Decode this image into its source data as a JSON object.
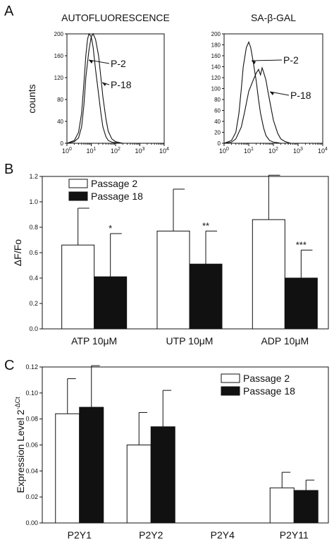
{
  "panels": {
    "A": {
      "letter": "A",
      "ylabel": "counts"
    },
    "B": {
      "letter": "B"
    },
    "C": {
      "letter": "C"
    }
  },
  "chart_data": [
    {
      "type": "line",
      "panel": "A",
      "title": "AUTOFLUORESCENCE",
      "xlabel": "",
      "ylabel": "counts",
      "x_scale": "log",
      "xlim": [
        1,
        10000
      ],
      "x_ticks": [
        "10^0",
        "10^1",
        "10^2",
        "10^3",
        "10^4"
      ],
      "ylim": [
        0,
        200
      ],
      "y_ticks": [
        "0",
        "40",
        "80",
        "120",
        "160",
        "200"
      ],
      "series": [
        {
          "name": "P-2",
          "x": [
            1,
            2,
            3,
            4,
            5,
            6,
            7,
            8,
            10,
            12,
            15,
            20,
            25,
            30,
            40,
            50,
            70,
            100,
            150
          ],
          "y": [
            0,
            5,
            20,
            55,
            110,
            160,
            190,
            200,
            195,
            175,
            135,
            90,
            55,
            30,
            12,
            5,
            2,
            1,
            0
          ]
        },
        {
          "name": "P-18",
          "x": [
            1,
            2,
            3,
            4,
            5,
            6,
            8,
            10,
            12,
            15,
            20,
            25,
            30,
            40,
            50,
            70,
            100,
            150,
            200
          ],
          "y": [
            0,
            3,
            10,
            30,
            70,
            120,
            170,
            195,
            200,
            190,
            160,
            120,
            85,
            45,
            22,
            8,
            3,
            1,
            0
          ]
        }
      ],
      "annotations": [
        "P-2",
        "P-18"
      ]
    },
    {
      "type": "line",
      "panel": "A",
      "title": "SA-β-GAL",
      "xlabel": "",
      "ylabel": "",
      "x_scale": "log",
      "xlim": [
        1,
        10000
      ],
      "x_ticks": [
        "10^0",
        "10^1",
        "10^2",
        "10^3",
        "10^4"
      ],
      "ylim": [
        0,
        200
      ],
      "y_ticks": [
        "0",
        "20",
        "40",
        "60",
        "80",
        "100",
        "120",
        "140",
        "160",
        "180",
        "200"
      ],
      "series": [
        {
          "name": "P-2",
          "x": [
            1,
            2,
            3,
            4,
            5,
            6,
            8,
            10,
            12,
            15,
            20,
            25,
            30,
            40,
            50,
            70,
            100,
            150,
            200
          ],
          "y": [
            0,
            5,
            20,
            55,
            100,
            140,
            175,
            185,
            175,
            150,
            115,
            80,
            55,
            28,
            14,
            5,
            2,
            1,
            0
          ]
        },
        {
          "name": "P-18",
          "x": [
            1,
            2,
            3,
            5,
            7,
            10,
            15,
            20,
            25,
            30,
            35,
            40,
            50,
            60,
            80,
            100,
            150,
            200,
            300,
            500
          ],
          "y": [
            0,
            2,
            8,
            30,
            60,
            95,
            115,
            128,
            135,
            125,
            138,
            130,
            115,
            95,
            65,
            42,
            18,
            8,
            3,
            0
          ]
        }
      ],
      "annotations": [
        "P-2",
        "P-18"
      ]
    },
    {
      "type": "bar",
      "panel": "B",
      "xlabel": "",
      "ylabel": "ΔF/Fo",
      "categories": [
        "ATP 10μM",
        "UTP 10μM",
        "ADP 10μM"
      ],
      "ylim": [
        0,
        1.2
      ],
      "y_ticks": [
        "0.0",
        "0.2",
        "0.4",
        "0.6",
        "0.8",
        "1.0",
        "1.2"
      ],
      "series": [
        {
          "name": "Passage 2",
          "color": "#ffffff",
          "values": [
            0.66,
            0.77,
            0.86
          ],
          "errors": [
            0.29,
            0.33,
            0.35
          ]
        },
        {
          "name": "Passage 18",
          "color": "#111111",
          "values": [
            0.41,
            0.51,
            0.4
          ],
          "errors": [
            0.34,
            0.26,
            0.22
          ]
        }
      ],
      "significance": [
        "*",
        "**",
        "***"
      ],
      "legend": "top-left"
    },
    {
      "type": "bar",
      "panel": "C",
      "xlabel": "",
      "ylabel": "Expression Level 2",
      "ylabel_sup": "-ΔCt",
      "categories": [
        "P2Y1",
        "P2Y2",
        "P2Y4",
        "P2Y11"
      ],
      "ylim": [
        0,
        0.12
      ],
      "y_ticks": [
        "0.00",
        "0.02",
        "0.04",
        "0.06",
        "0.08",
        "0.10",
        "0.12"
      ],
      "series": [
        {
          "name": "Passage 2",
          "color": "#ffffff",
          "values": [
            0.084,
            0.06,
            0,
            0.027
          ],
          "errors": [
            0.027,
            0.025,
            0,
            0.012
          ]
        },
        {
          "name": "Passage 18",
          "color": "#111111",
          "values": [
            0.089,
            0.074,
            0,
            0.025
          ],
          "errors": [
            0.032,
            0.028,
            0,
            0.008
          ]
        }
      ],
      "legend": "top-right"
    }
  ]
}
